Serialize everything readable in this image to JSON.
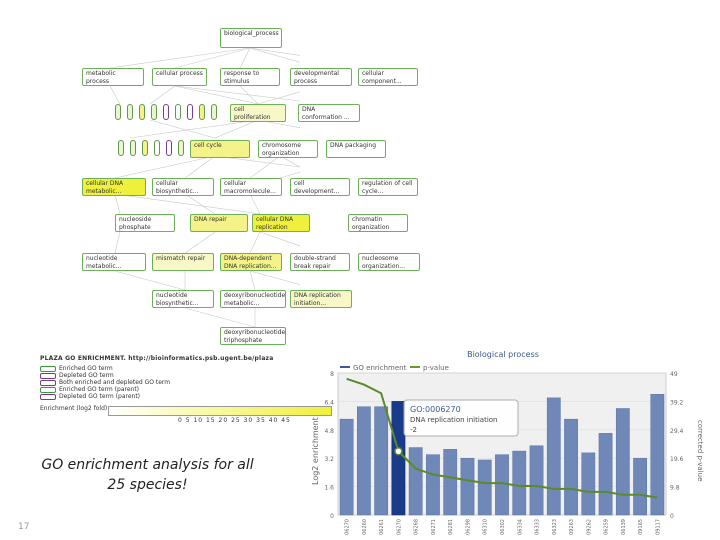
{
  "tree": {
    "root": "biological_process",
    "level1": [
      "metabolic process",
      "cellular process",
      "response to stimulus",
      "developmental process",
      "cellular component..."
    ],
    "level2": [
      "cell proliferation",
      "DNA conformation ..."
    ],
    "level3": [
      "cell cycle",
      "chromosome organization",
      "DNA packaging"
    ],
    "level4": [
      "cellular DNA metabolic...",
      "cellular biosynthetic...",
      "cellular macromolecule...",
      "cell development...",
      "regulation of cell cycle..."
    ],
    "level5": [
      "nucleoside phosphate",
      "DNA repair",
      "cellular DNA replication",
      "chromatin organization"
    ],
    "level6": [
      "nucleotide metabolic...",
      "mismatch repair",
      "DNA-dependent DNA replication...",
      "double-strand break repair",
      "nucleosome organization..."
    ],
    "level7": [
      "nucleotide biosynthetic...",
      "deoxyribonucleotide metabolic...",
      "DNA replication initiation..."
    ],
    "level8": "deoxyribonucleotide triphosphate"
  },
  "legend": {
    "title": "PLAZA GO ENRICHMENT. http://bioinformatics.psb.ugent.be/plaza",
    "rows": [
      "Enriched GO term",
      "Depleted GO term",
      "Both enriched and depleted GO term",
      "Enriched GO term (parent)",
      "Depleted GO term (parent)"
    ],
    "scale_label": "Enrichment (log2 fold)",
    "ticks": "0  5  10  15  20  25  30  35  40  45"
  },
  "caption": "GO enrichment analysis for all 25 species!",
  "slide_number": "17",
  "chart_data": {
    "type": "bar",
    "title": "Biological process",
    "legend": [
      "GO enrichment",
      "p-value"
    ],
    "ylabel": "Log2 enrichment",
    "y2label": "corrected p-value",
    "ylim": [
      0,
      8
    ],
    "yticks": [
      "8",
      "6.4",
      "4.8",
      "3.2",
      "1.6",
      "0"
    ],
    "y2ticks": [
      "49",
      "39.2",
      "29.4",
      "19.6",
      "9.8",
      "0"
    ],
    "y2lim": [
      0,
      49
    ],
    "categories": [
      "GO:0006270",
      "GO:0006260",
      "GO:0006261",
      "GO:0006270",
      "GO:0006268",
      "GO:0006271",
      "GO:0006281",
      "GO:0006298",
      "GO:0006310",
      "GO:0006302",
      "GO:0006334",
      "GO:0006333",
      "GO:0006323",
      "GO:0009263",
      "GO:0009262",
      "GO:0006259",
      "GO:0006139",
      "GO:0009165",
      "GO:0009117"
    ],
    "values": [
      5.4,
      6.1,
      6.1,
      6.4,
      3.8,
      3.4,
      3.7,
      3.2,
      3.1,
      3.4,
      3.6,
      3.9,
      6.6,
      5.4,
      3.5,
      4.6,
      6.0,
      3.2,
      6.8
    ],
    "highlight_index": 3,
    "pvalues": [
      47,
      45,
      42,
      22,
      16,
      14,
      13,
      12,
      11,
      11,
      10,
      10,
      9,
      9,
      8,
      8,
      7,
      7,
      6
    ],
    "tooltip": {
      "id": "GO:0006270",
      "label": "DNA replication initiation",
      "value": "-2"
    }
  }
}
